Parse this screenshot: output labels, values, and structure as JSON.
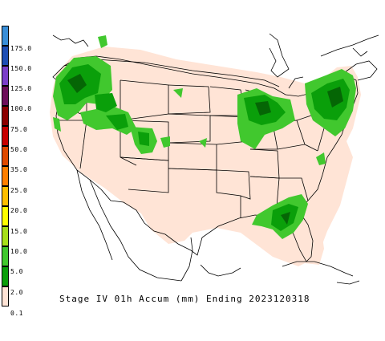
{
  "caption": "Stage IV 01h Accum (mm) Ending 2023120318",
  "legend": {
    "labels": [
      "175.0",
      "150.0",
      "125.0",
      "100.0",
      "75.0",
      "50.0",
      "35.0",
      "25.0",
      "20.0",
      "15.0",
      "10.0",
      "5.0",
      "2.0",
      "0.1"
    ],
    "colors": [
      "#3a8fd9",
      "#1f4fb5",
      "#7b3fc9",
      "#6d0f5a",
      "#8c0000",
      "#c80000",
      "#e04a00",
      "#ff7f00",
      "#ffbf00",
      "#ffff00",
      "#a8e01a",
      "#41c82e",
      "#0a9f0a",
      "#ffe4d6"
    ]
  },
  "map": {
    "background_color": "#ffe4d6",
    "precip_light": "#41c82e",
    "precip_medium": "#0a9f0a",
    "precip_heavy": "#056605",
    "boundary_color": "#000000"
  }
}
